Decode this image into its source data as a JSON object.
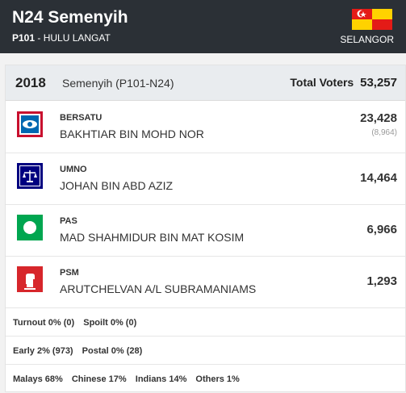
{
  "header": {
    "title": "N24 Semenyih",
    "parliament_code": "P101",
    "parliament_name": "- HULU LANGAT",
    "state": "SELANGOR"
  },
  "summary": {
    "year": "2018",
    "seat": "Semenyih (P101-N24)",
    "total_voters_label": "Total Voters",
    "total_voters": "53,257"
  },
  "candidates": [
    {
      "party": "BERSATU",
      "name": "BAKHTIAR BIN MOHD NOR",
      "votes": "23,428",
      "majority": "(8,964)",
      "logo": "bersatu-logo",
      "color": "#c8102e"
    },
    {
      "party": "UMNO",
      "name": "JOHAN BIN ABD AZIZ",
      "votes": "14,464",
      "logo": "umno-scales-logo",
      "color": "#000080"
    },
    {
      "party": "PAS",
      "name": "MAD SHAHMIDUR BIN MAT KOSIM",
      "votes": "6,966",
      "logo": "pas-logo",
      "color": "#00a650"
    },
    {
      "party": "PSM",
      "name": "ARUTCHELVAN A/L SUBRAMANIAMS",
      "votes": "1,293",
      "logo": "psm-fist-logo",
      "color": "#d7262b"
    }
  ],
  "stats": {
    "turnout": "Turnout 0% (0)",
    "spoilt": "Spoilt 0% (0)",
    "early": "Early 2% (973)",
    "postal": "Postal 0% (28)",
    "malays": "Malays 68%",
    "chinese": "Chinese 17%",
    "indians": "Indians 14%",
    "others": "Others 1%"
  }
}
